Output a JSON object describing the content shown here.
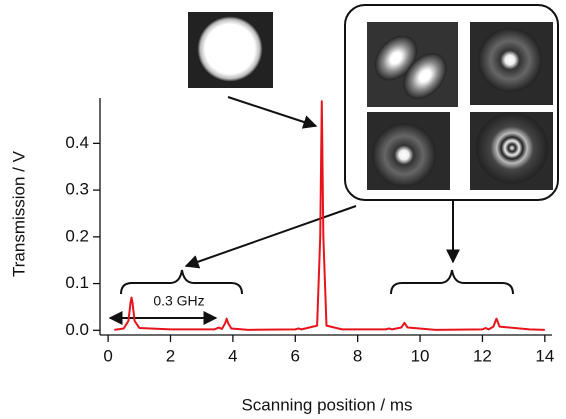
{
  "chart_data": {
    "type": "line",
    "xlabel": "Scanning position / ms",
    "ylabel": "Transmission / V",
    "annotation": "0.3 GHz",
    "color": "#e8141c",
    "x": [
      0.2,
      0.5,
      0.65,
      0.72,
      0.75,
      0.78,
      0.85,
      1.0,
      2.0,
      3.4,
      3.55,
      3.65,
      3.75,
      3.8,
      3.85,
      3.95,
      4.5,
      6.0,
      6.1,
      6.2,
      6.7,
      6.8,
      6.85,
      6.9,
      7.0,
      7.5,
      8.9,
      9.0,
      9.1,
      9.4,
      9.5,
      9.6,
      10.5,
      12.0,
      12.1,
      12.2,
      12.35,
      12.45,
      12.55,
      13.5,
      14.0
    ],
    "values": [
      0.001,
      0.004,
      0.02,
      0.06,
      0.07,
      0.06,
      0.02,
      0.005,
      0.002,
      0.002,
      0.006,
      0.003,
      0.015,
      0.025,
      0.015,
      0.004,
      0.001,
      0.002,
      0.004,
      0.002,
      0.01,
      0.2,
      0.49,
      0.2,
      0.01,
      0.002,
      0.002,
      0.004,
      0.002,
      0.006,
      0.016,
      0.006,
      0.001,
      0.002,
      0.005,
      0.002,
      0.008,
      0.025,
      0.008,
      0.002,
      0.001
    ],
    "xlim": [
      -0.26,
      14.23
    ],
    "ylim": [
      -0.01,
      0.497
    ],
    "xticks": [
      0,
      2,
      4,
      6,
      8,
      10,
      12,
      14
    ],
    "yticks": [
      {
        "value": 0,
        "label": "0.0"
      },
      0.1,
      0.2,
      0.3,
      0.4
    ]
  }
}
